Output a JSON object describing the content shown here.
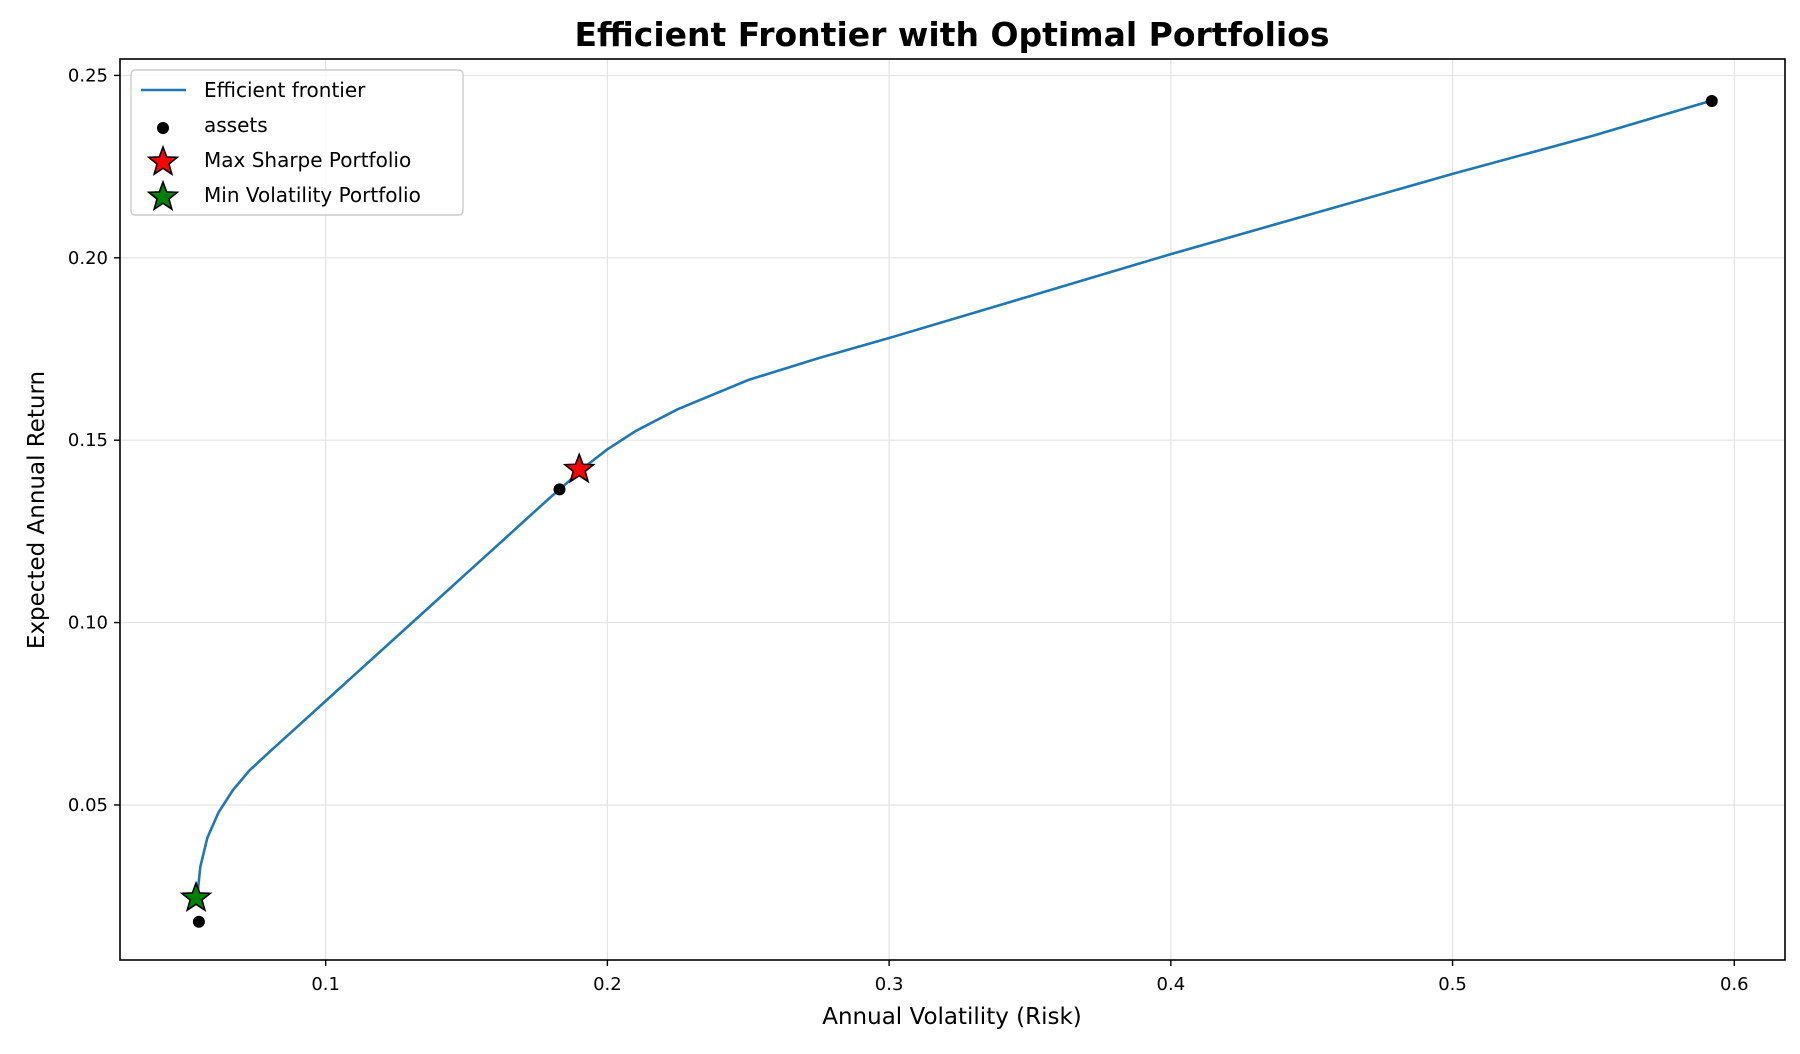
{
  "chart_data": {
    "type": "line",
    "title": "Efficient Frontier with Optimal Portfolios",
    "xlabel": "Annual Volatility (Risk)",
    "ylabel": "Expected Annual Return",
    "xlim": [
      0.027,
      0.618
    ],
    "ylim": [
      0.0075,
      0.2545
    ],
    "xticks": [
      0.1,
      0.2,
      0.3,
      0.4,
      0.5,
      0.6
    ],
    "xtick_labels": [
      "0.1",
      "0.2",
      "0.3",
      "0.4",
      "0.5",
      "0.6"
    ],
    "yticks": [
      0.05,
      0.1,
      0.15,
      0.2,
      0.25
    ],
    "ytick_labels": [
      "0.05",
      "0.10",
      "0.15",
      "0.20",
      "0.25"
    ],
    "grid": true,
    "legend_position": "top-left",
    "series": [
      {
        "name": "Efficient frontier",
        "kind": "line",
        "color": "#1f77b4",
        "x": [
          0.0545,
          0.0555,
          0.058,
          0.062,
          0.067,
          0.073,
          0.08,
          0.09,
          0.1,
          0.11,
          0.12,
          0.13,
          0.14,
          0.15,
          0.16,
          0.17,
          0.18,
          0.186,
          0.19,
          0.195,
          0.2,
          0.21,
          0.225,
          0.25,
          0.275,
          0.3,
          0.35,
          0.4,
          0.45,
          0.5,
          0.55,
          0.5915
        ],
        "y": [
          0.0255,
          0.033,
          0.041,
          0.048,
          0.054,
          0.0595,
          0.0645,
          0.0715,
          0.0785,
          0.0855,
          0.0925,
          0.0995,
          0.1065,
          0.1135,
          0.1205,
          0.1275,
          0.1345,
          0.1385,
          0.1415,
          0.1445,
          0.1475,
          0.1525,
          0.1585,
          0.1665,
          0.1725,
          0.178,
          0.1895,
          0.201,
          0.212,
          0.223,
          0.2335,
          0.243
        ]
      },
      {
        "name": "assets",
        "kind": "scatter",
        "color": "#000000",
        "x": [
          0.055,
          0.183,
          0.592
        ],
        "y": [
          0.018,
          0.1365,
          0.243
        ]
      },
      {
        "name": "Max Sharpe Portfolio",
        "kind": "marker-star",
        "color": "#ff0000",
        "x": [
          0.19
        ],
        "y": [
          0.142
        ]
      },
      {
        "name": "Min Volatility Portfolio",
        "kind": "marker-star",
        "color": "#008000",
        "x": [
          0.054
        ],
        "y": [
          0.0245
        ]
      }
    ]
  }
}
